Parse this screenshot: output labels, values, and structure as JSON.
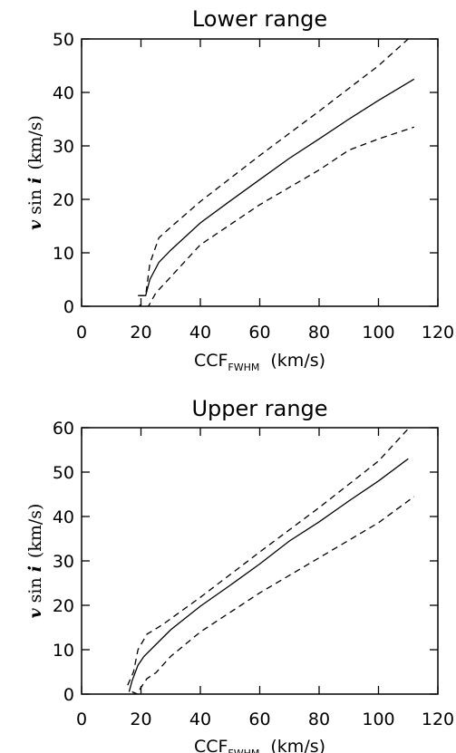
{
  "chart_data": [
    {
      "type": "line",
      "title": "Lower range",
      "xlabel": {
        "main": "CCF",
        "sub": "FWHM",
        "unit": "(km/s)"
      },
      "ylabel": {
        "var": "v",
        "mid": "sin",
        "ivar": "i",
        "unit": "(km/s)"
      },
      "xlim": [
        0,
        120
      ],
      "ylim": [
        0,
        50
      ],
      "xticks": [
        0,
        20,
        40,
        60,
        80,
        100,
        120
      ],
      "yticks": [
        0,
        10,
        20,
        30,
        40,
        50
      ],
      "grid": false,
      "series": [
        {
          "style": "solid",
          "points": [
            [
              19.5,
              2
            ],
            [
              21.6,
              2
            ],
            [
              23,
              5
            ],
            [
              26,
              8.2
            ],
            [
              30,
              10.5
            ],
            [
              40,
              15.6
            ],
            [
              50,
              19.7
            ],
            [
              60,
              23.7
            ],
            [
              70,
              27.7
            ],
            [
              80,
              31.3
            ],
            [
              90,
              35
            ],
            [
              100,
              38.5
            ],
            [
              112,
              42.5
            ]
          ]
        },
        {
          "style": "dashed",
          "points": [
            [
              19,
              2
            ],
            [
              21.6,
              2
            ],
            [
              23,
              8
            ],
            [
              26,
              12.8
            ],
            [
              30,
              14.8
            ],
            [
              40,
              19.6
            ],
            [
              60,
              28.2
            ],
            [
              80,
              36.5
            ],
            [
              100,
              45
            ],
            [
              112,
              51
            ]
          ]
        },
        {
          "style": "dashed",
          "points": [
            [
              19.5,
              0.3
            ],
            [
              20.5,
              -0.7
            ],
            [
              22,
              0
            ],
            [
              22.5,
              0
            ],
            [
              25,
              2.5
            ],
            [
              30,
              5.5
            ],
            [
              40,
              11.5
            ],
            [
              60,
              19
            ],
            [
              80,
              25.5
            ],
            [
              90,
              29.2
            ],
            [
              100,
              31.3
            ],
            [
              112,
              33.5
            ]
          ]
        }
      ]
    },
    {
      "type": "line",
      "title": "Upper range",
      "xlabel": {
        "main": "CCF",
        "sub": "FWHM",
        "unit": "(km/s)"
      },
      "ylabel": {
        "var": "v",
        "mid": "sin",
        "ivar": "i",
        "unit": "(km/s)"
      },
      "xlim": [
        0,
        120
      ],
      "ylim": [
        0,
        60
      ],
      "xticks": [
        0,
        20,
        40,
        60,
        80,
        100,
        120
      ],
      "yticks": [
        0,
        10,
        20,
        30,
        40,
        50,
        60
      ],
      "grid": false,
      "series": [
        {
          "style": "solid",
          "points": [
            [
              16,
              0.5
            ],
            [
              17,
              3
            ],
            [
              19,
              6.5
            ],
            [
              21,
              8.5
            ],
            [
              30,
              14.5
            ],
            [
              40,
              19.8
            ],
            [
              50,
              24.5
            ],
            [
              60,
              29.3
            ],
            [
              70,
              34.5
            ],
            [
              80,
              38.8
            ],
            [
              90,
              43.5
            ],
            [
              100,
              48
            ],
            [
              110,
              53
            ]
          ]
        },
        {
          "style": "dashed",
          "points": [
            [
              15.5,
              2
            ],
            [
              17.5,
              5
            ],
            [
              19,
              10
            ],
            [
              22,
              13.5
            ],
            [
              27,
              15.5
            ],
            [
              40,
              21.8
            ],
            [
              60,
              32
            ],
            [
              80,
              42
            ],
            [
              100,
              52.5
            ],
            [
              112,
              61.2
            ]
          ]
        },
        {
          "style": "dashed",
          "points": [
            [
              17,
              0.5
            ],
            [
              18.8,
              0
            ],
            [
              19.5,
              1
            ],
            [
              22,
              3.5
            ],
            [
              25,
              4.8
            ],
            [
              30,
              8.5
            ],
            [
              40,
              14
            ],
            [
              60,
              22.8
            ],
            [
              80,
              30.7
            ],
            [
              100,
              38.6
            ],
            [
              112,
              44.5
            ]
          ]
        }
      ]
    }
  ]
}
